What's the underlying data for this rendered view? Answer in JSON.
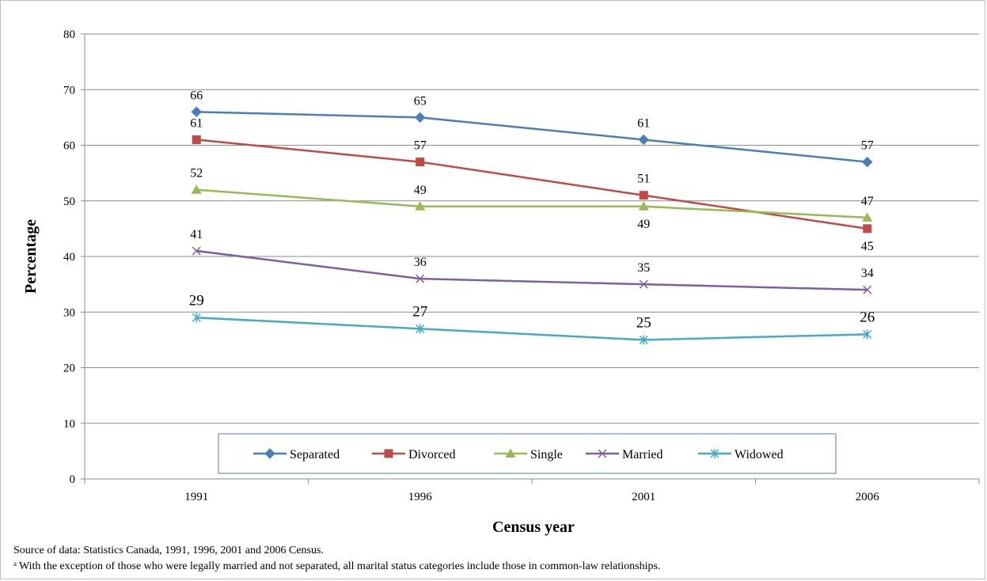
{
  "chart_data": {
    "type": "line",
    "categories": [
      "1991",
      "1996",
      "2001",
      "2006"
    ],
    "xlabel": "Census year",
    "ylabel": "Percentage",
    "ylim": [
      0,
      80
    ],
    "yticks": [
      0,
      10,
      20,
      30,
      40,
      50,
      60,
      70,
      80
    ],
    "grid": true,
    "legend_position": "bottom-center",
    "series": [
      {
        "name": "Separated",
        "values": [
          66,
          65,
          61,
          57
        ],
        "color": "#4a7ebb",
        "marker": "diamond"
      },
      {
        "name": "Divorced",
        "values": [
          61,
          57,
          51,
          45
        ],
        "color": "#be4b48",
        "marker": "square"
      },
      {
        "name": "Single",
        "values": [
          52,
          49,
          49,
          47
        ],
        "color": "#98b954",
        "marker": "triangle"
      },
      {
        "name": "Married",
        "values": [
          41,
          36,
          35,
          34
        ],
        "color": "#7d60a0",
        "marker": "x"
      },
      {
        "name": "Widowed",
        "values": [
          29,
          27,
          25,
          26
        ],
        "color": "#46aac5",
        "marker": "star"
      }
    ]
  },
  "notes": {
    "source": "Source of data:  Statistics Canada, 1991, 1996, 2001 and 2006 Census.",
    "footnote_marker": "a",
    "footnote": "With the exception of those who were legally married and not separated, all marital status categories include those in common-law relationships."
  }
}
